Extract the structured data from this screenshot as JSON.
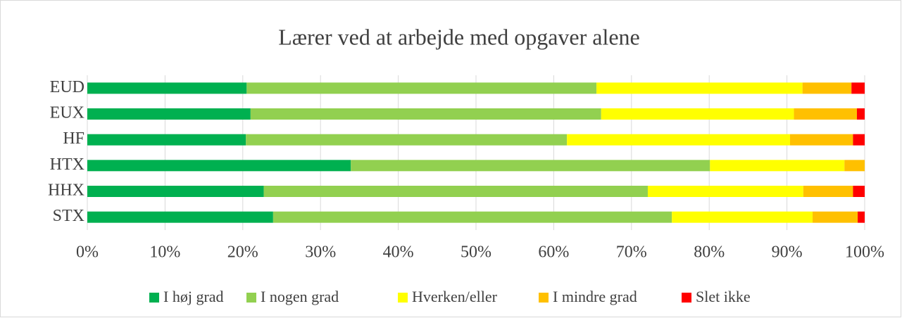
{
  "chart_data": {
    "type": "stacked_barh",
    "title": "Lærer ved at arbejde med opgaver alene",
    "categories": [
      "EUD",
      "EUX",
      "HF",
      "HTX",
      "HHX",
      "STX"
    ],
    "series": [
      {
        "name": "I høj grad",
        "color": "#00b050",
        "values": [
          20.5,
          21.0,
          20.4,
          33.9,
          22.7,
          23.9
        ]
      },
      {
        "name": "I nogen grad",
        "color": "#92d050",
        "values": [
          45.0,
          45.1,
          41.3,
          46.2,
          49.4,
          51.3
        ]
      },
      {
        "name": "Hverken/eller",
        "color": "#ffff00",
        "values": [
          26.5,
          24.8,
          28.7,
          17.3,
          20.0,
          18.1
        ]
      },
      {
        "name": "I mindre grad",
        "color": "#ffc000",
        "values": [
          6.3,
          8.1,
          8.1,
          2.6,
          6.4,
          5.8
        ]
      },
      {
        "name": "Slet ikke",
        "color": "#ff0000",
        "values": [
          1.7,
          1.0,
          1.5,
          0,
          1.5,
          0.9
        ]
      }
    ],
    "xlim": [
      0,
      100
    ],
    "xticks": [
      {
        "value": 0,
        "label": "0%"
      },
      {
        "value": 10,
        "label": "10%"
      },
      {
        "value": 20,
        "label": "20%"
      },
      {
        "value": 30,
        "label": "30%"
      },
      {
        "value": 40,
        "label": "40%"
      },
      {
        "value": 50,
        "label": "50%"
      },
      {
        "value": 60,
        "label": "60%"
      },
      {
        "value": 70,
        "label": "70%"
      },
      {
        "value": 80,
        "label": "80%"
      },
      {
        "value": 90,
        "label": "90%"
      },
      {
        "value": 100,
        "label": "100%"
      }
    ],
    "grid": true,
    "legend": "bottom"
  }
}
